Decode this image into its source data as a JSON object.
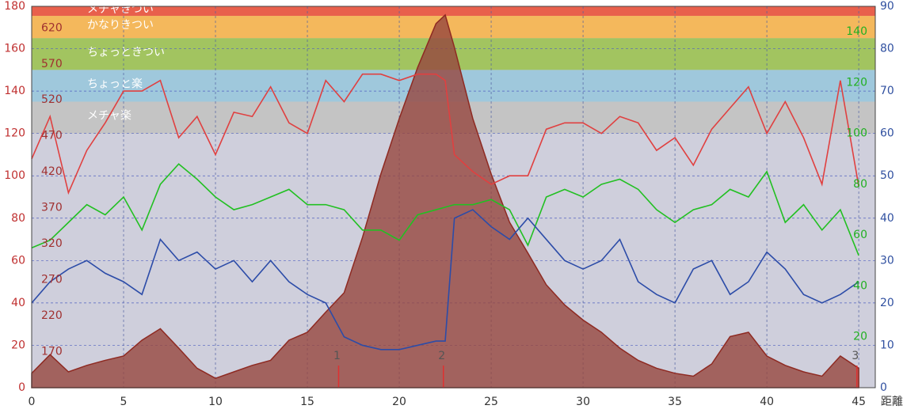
{
  "chart_data": {
    "type": "line",
    "x": [
      0,
      1,
      2,
      3,
      4,
      5,
      6,
      7,
      8,
      9,
      10,
      11,
      12,
      13,
      14,
      15,
      16,
      17,
      18,
      19,
      20,
      21,
      22,
      22.5,
      23,
      24,
      25,
      26,
      27,
      28,
      29,
      30,
      31,
      32,
      33,
      34,
      35,
      36,
      37,
      38,
      39,
      40,
      41,
      42,
      43,
      44,
      45
    ],
    "xlim": [
      0,
      45.9
    ],
    "xticks": [
      0,
      5,
      10,
      15,
      20,
      25,
      30,
      35,
      40,
      45
    ],
    "xlabel": "距離",
    "ylim": [
      0,
      180
    ],
    "yticks": [
      0,
      20,
      40,
      60,
      80,
      100,
      120,
      140,
      160,
      180
    ],
    "ycolor": "#c03030",
    "y2lim": [
      0,
      90
    ],
    "y2ticks": [
      0,
      10,
      20,
      30,
      40,
      50,
      60,
      70,
      80,
      90
    ],
    "y2color": "#3050a0",
    "y3lim": [
      0,
      150
    ],
    "y3ticks": [
      20,
      40,
      60,
      80,
      100,
      120,
      140
    ],
    "y3color": "#22b022",
    "y4lim": [
      120,
      650
    ],
    "y4ticks": [
      170,
      220,
      270,
      320,
      370,
      420,
      470,
      520,
      570,
      620
    ],
    "y4color": "#a03030",
    "grid": true,
    "plot_background": "#cfcfdc",
    "zones": [
      {
        "from": 120,
        "to": 135,
        "color": "#c4c4c4",
        "label": "メチャ楽"
      },
      {
        "from": 135,
        "to": 150,
        "color": "#9fc8dc",
        "label": "ちょっと楽"
      },
      {
        "from": 150,
        "to": 165,
        "color": "#a2c460",
        "label": "ちょっときつい"
      },
      {
        "from": 165,
        "to": 175.5,
        "color": "#f4b85c",
        "label": "かなりきつい"
      },
      {
        "from": 175.5,
        "to": 180,
        "color": "#e8604c",
        "label": "メチャきつい"
      }
    ],
    "laps": [
      {
        "x": 16.7,
        "label": "1"
      },
      {
        "x": 22.4,
        "label": "2"
      },
      {
        "x": 44.9,
        "label": "3"
      }
    ],
    "series": [
      {
        "axis": "y4",
        "area": true,
        "color": "#8e2a22",
        "fill": "rgba(150,70,62,0.8)",
        "values": [
          140,
          166,
          142,
          151,
          158,
          164,
          186,
          202,
          175,
          147,
          133,
          142,
          151,
          158,
          186,
          197,
          225,
          252,
          329,
          417,
          494,
          565,
          626,
          638,
          593,
          494,
          417,
          350,
          307,
          263,
          235,
          214,
          197,
          175,
          158,
          147,
          140,
          136,
          153,
          191,
          197,
          164,
          151,
          142,
          136,
          164,
          147
        ]
      },
      {
        "axis": "y",
        "color": "#e04040",
        "values": [
          108,
          128,
          92,
          112,
          125,
          140,
          140,
          145,
          118,
          128,
          110,
          130,
          128,
          142,
          125,
          120,
          145,
          135,
          148,
          148,
          145,
          148,
          148,
          145,
          110,
          102,
          96,
          100,
          100,
          122,
          125,
          125,
          120,
          128,
          125,
          112,
          118,
          105,
          122,
          132,
          142,
          120,
          135,
          118,
          96,
          145,
          95
        ]
      },
      {
        "axis": "y3",
        "color": "#22c022",
        "values": [
          55,
          58,
          65,
          72,
          68,
          75,
          62,
          80,
          88,
          82,
          75,
          70,
          72,
          75,
          78,
          72,
          72,
          70,
          62,
          62,
          58,
          68,
          70,
          71,
          72,
          72,
          74,
          70,
          56,
          75,
          78,
          75,
          80,
          82,
          78,
          70,
          65,
          70,
          72,
          78,
          75,
          85,
          65,
          72,
          62,
          70,
          52
        ]
      },
      {
        "axis": "y2",
        "color": "#2c4ca8",
        "values": [
          20,
          25,
          28,
          30,
          27,
          25,
          22,
          35,
          30,
          32,
          28,
          30,
          25,
          30,
          25,
          22,
          20,
          12,
          10,
          9,
          9,
          10,
          11,
          11,
          40,
          42,
          38,
          35,
          40,
          35,
          30,
          28,
          30,
          35,
          25,
          22,
          20,
          28,
          30,
          22,
          25,
          32,
          28,
          22,
          20,
          22,
          25
        ]
      }
    ]
  }
}
